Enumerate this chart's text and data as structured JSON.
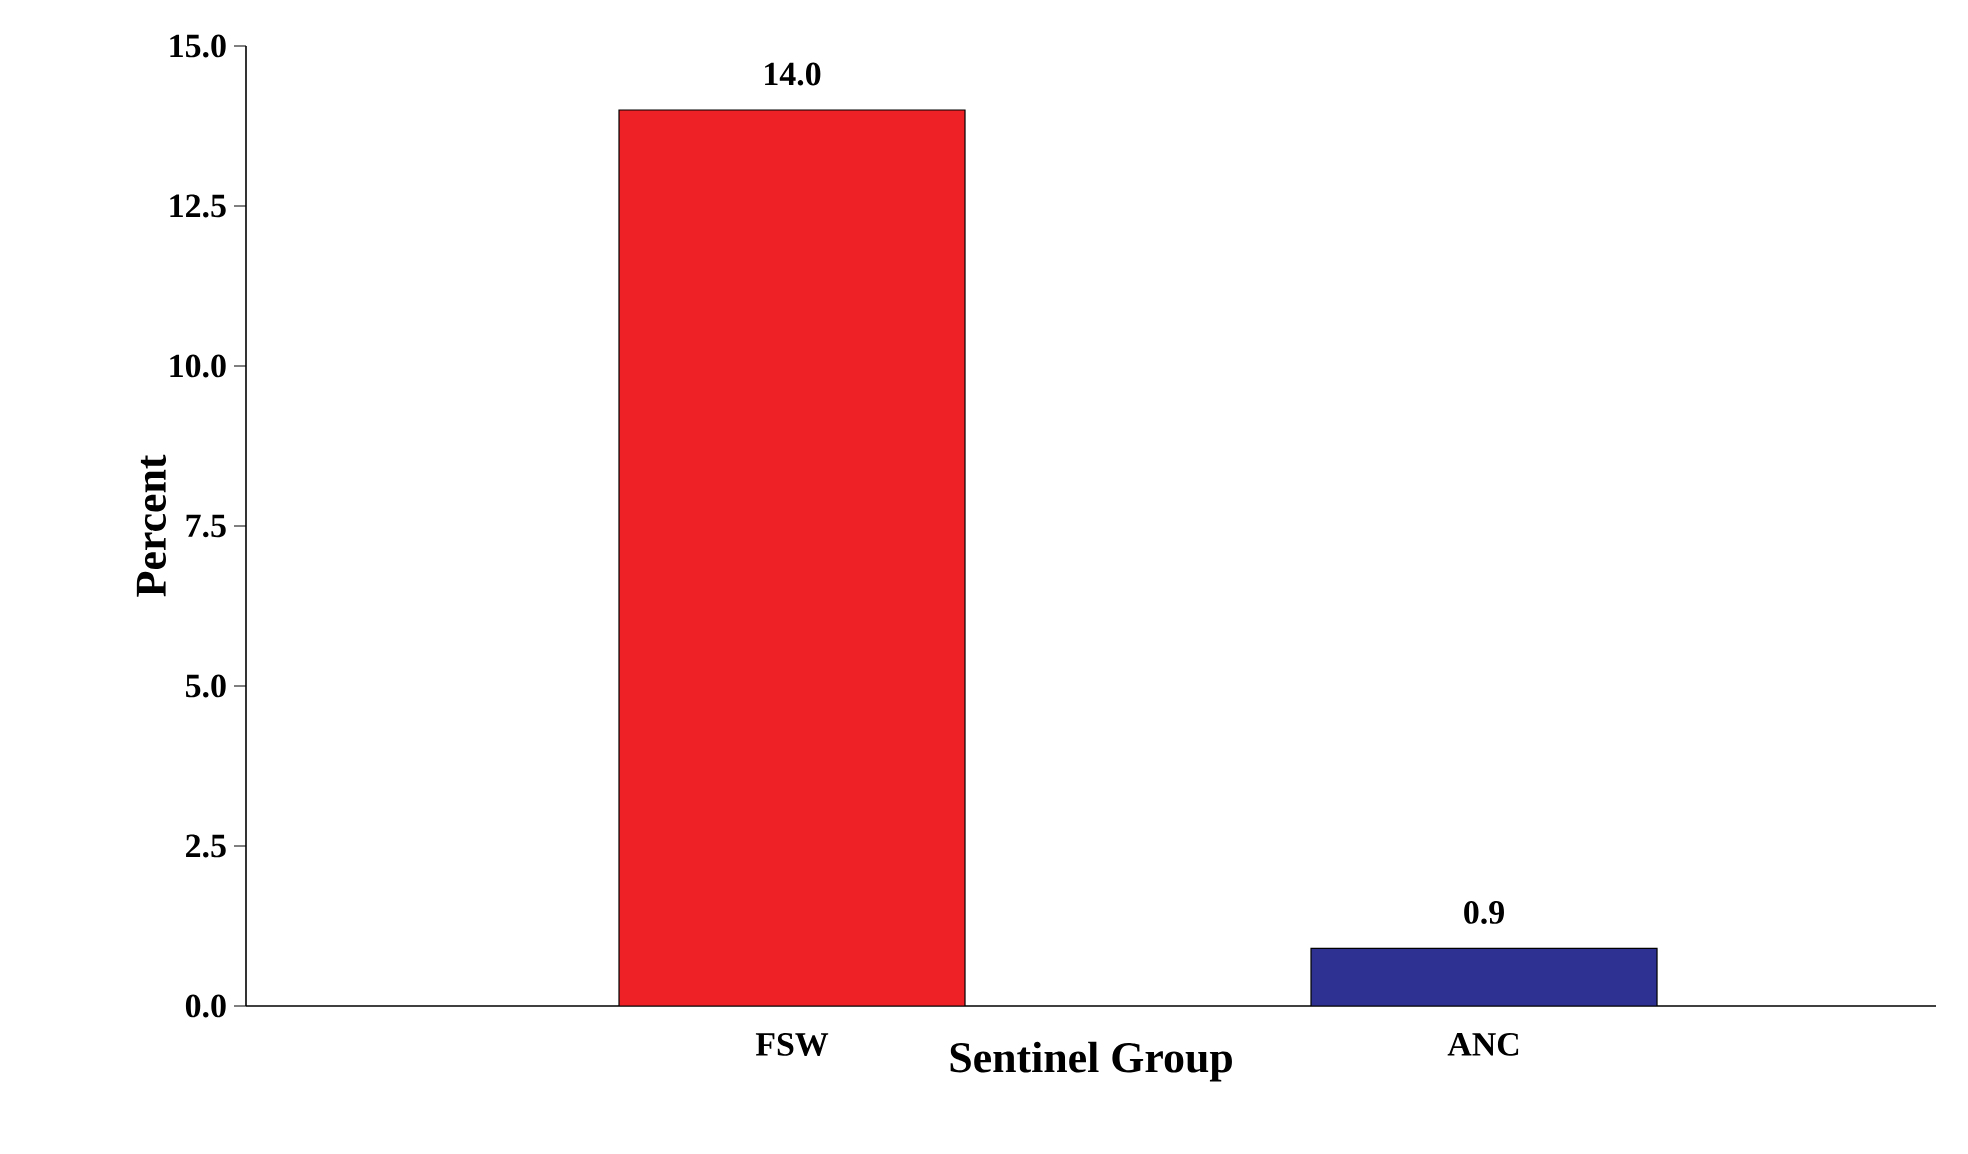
{
  "chart_data": {
    "type": "bar",
    "xlabel": "Sentinel Group",
    "ylabel": "Percent",
    "categories": [
      "FSW",
      "ANC"
    ],
    "values": [
      14.0,
      0.9
    ],
    "colors": [
      "#ee2226",
      "#2e3192"
    ],
    "value_labels": [
      "14.0",
      "0.9"
    ],
    "ylim": [
      0,
      15
    ],
    "yticks": [
      {
        "value": 0,
        "label": "0.0"
      },
      {
        "value": 2.5,
        "label": "2.5"
      },
      {
        "value": 5,
        "label": "5.0"
      },
      {
        "value": 7.5,
        "label": "7.5"
      },
      {
        "value": 10,
        "label": "10.0"
      },
      {
        "value": 12.5,
        "label": "12.5"
      },
      {
        "value": 15,
        "label": "15.0"
      }
    ]
  }
}
